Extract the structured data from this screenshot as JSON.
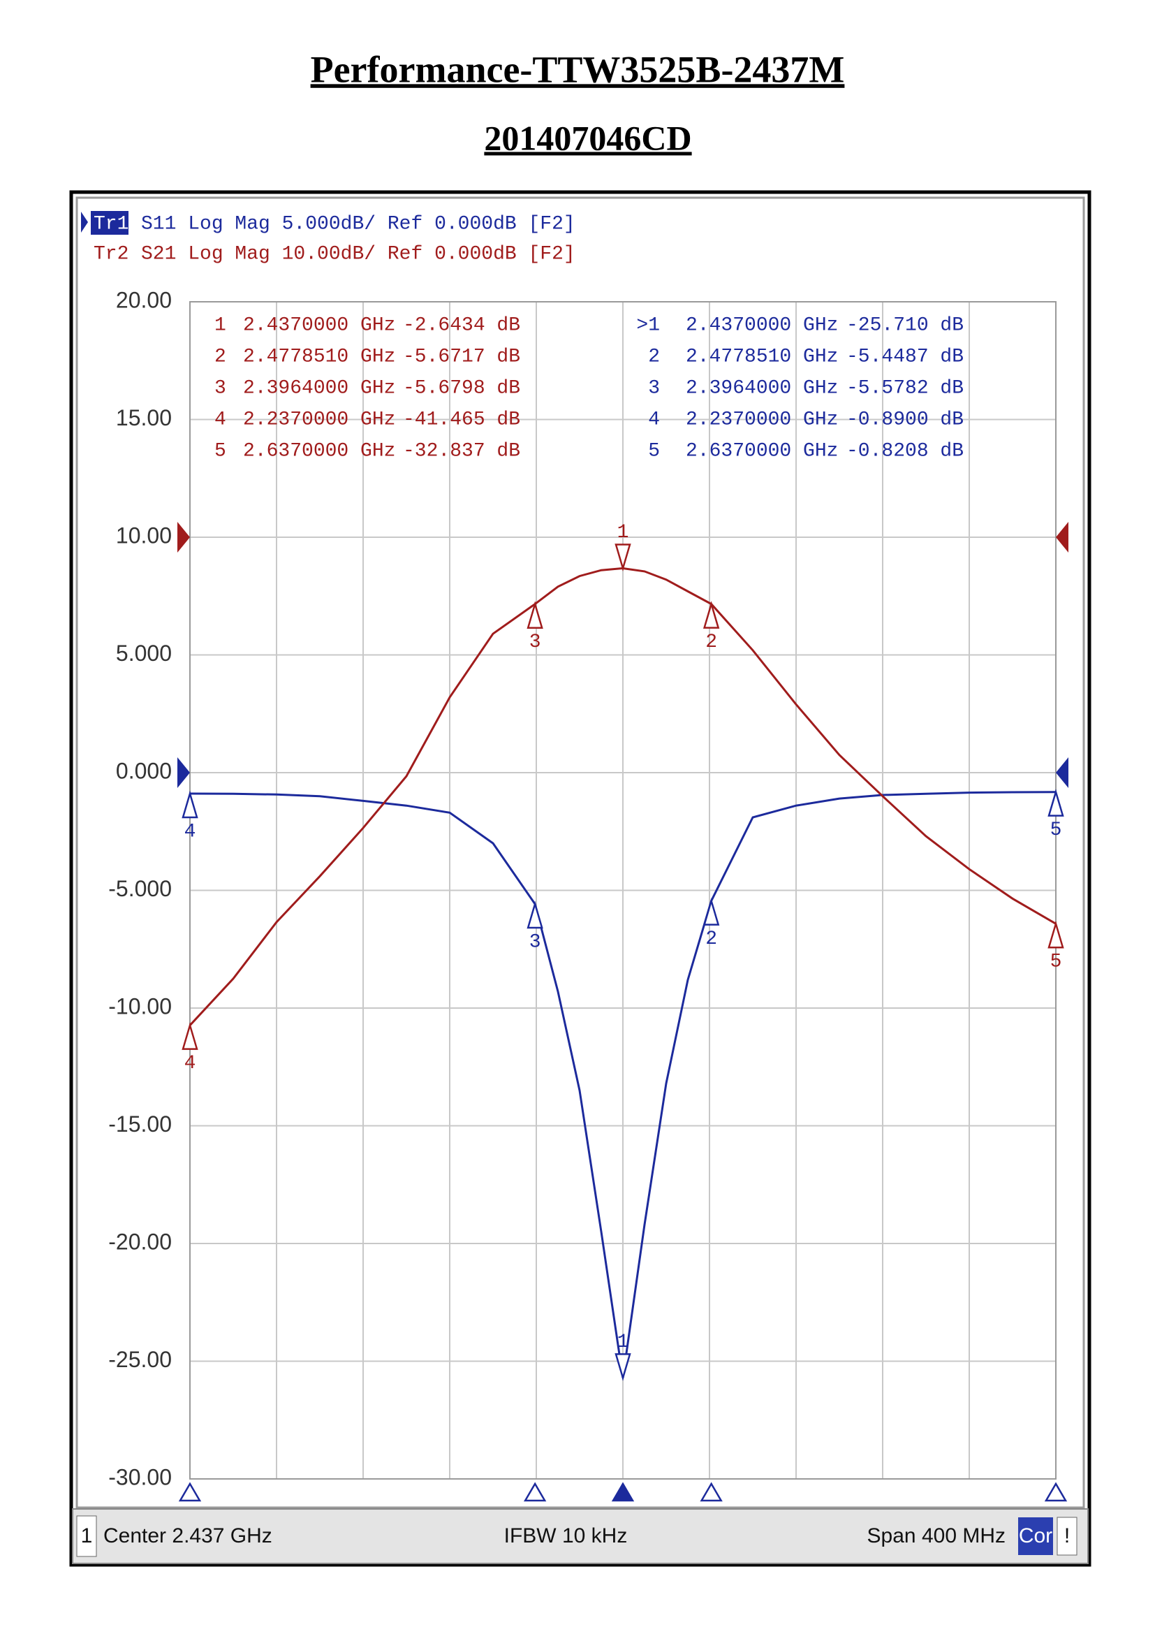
{
  "chart_data": {
    "type": "line",
    "title": "Performance-TTW3525B-2437M",
    "subtitle": "201407046CD",
    "x": [
      2.237,
      2.257,
      2.277,
      2.297,
      2.317,
      2.337,
      2.357,
      2.377,
      2.3964,
      2.407,
      2.417,
      2.427,
      2.437,
      2.447,
      2.457,
      2.467,
      2.47785,
      2.497,
      2.517,
      2.537,
      2.557,
      2.577,
      2.597,
      2.617,
      2.637
    ],
    "xlim": [
      2.237,
      2.637
    ],
    "ylim": [
      -30,
      20
    ],
    "y2lim": [
      -80,
      20
    ],
    "yticks": [
      {
        "value": 20,
        "label": "20.00"
      },
      {
        "value": 15,
        "label": "15.00"
      },
      {
        "value": 10,
        "label": "10.00"
      },
      {
        "value": 5,
        "label": "5.000"
      },
      {
        "value": 0,
        "label": "0.000"
      },
      {
        "value": -5,
        "label": "-5.000"
      },
      {
        "value": -10,
        "label": "-10.00"
      },
      {
        "value": -15,
        "label": "-15.00"
      },
      {
        "value": -20,
        "label": "-20.00"
      },
      {
        "value": -25,
        "label": "-25.00"
      },
      {
        "value": -30,
        "label": "-30.00"
      }
    ],
    "grid": true,
    "series": [
      {
        "trace": "Tr1",
        "name": "S11 Log Mag 5.000dB/ Ref 0.000dB [F2]",
        "color": "#1c2a9c",
        "values": [
          -0.89,
          -0.9,
          -0.93,
          -1.0,
          -1.2,
          -1.4,
          -1.7,
          -3.0,
          -5.5782,
          -9.3,
          -13.5,
          -19.5,
          -25.71,
          -19.2,
          -13.2,
          -8.8,
          -5.4487,
          -1.9,
          -1.4,
          -1.1,
          -0.95,
          -0.9,
          -0.85,
          -0.83,
          -0.8208
        ],
        "markers": {
          "labels": [
            "1",
            "2",
            "3",
            "4",
            "5"
          ],
          "table_labels": [
            ">1",
            "2",
            "3",
            "4",
            "5"
          ],
          "x": [
            2.437,
            2.477851,
            2.3964,
            2.237,
            2.637
          ],
          "x_labels": [
            "2.4370000 GHz",
            "2.4778510 GHz",
            "2.3964000 GHz",
            "2.2370000 GHz",
            "2.6370000 GHz"
          ],
          "values": [
            -25.71,
            -5.4487,
            -5.5782,
            -0.89,
            -0.8208
          ],
          "value_labels": [
            "-25.710 dB",
            "-5.4487 dB",
            "-5.5782 dB",
            "-0.8900 dB",
            "-0.8208 dB"
          ]
        }
      },
      {
        "trace": "Tr2",
        "name": "S21 Log Mag 10.00dB/ Ref 0.000dB [F2]",
        "color": "#a01c1c",
        "axis": "y2",
        "values": [
          -41.465,
          -37.5,
          -32.7,
          -28.8,
          -24.7,
          -20.3,
          -13.6,
          -8.2,
          -5.6798,
          -4.2,
          -3.3,
          -2.8,
          -2.6434,
          -2.9,
          -3.6,
          -4.6,
          -5.6717,
          -9.6,
          -14.2,
          -18.5,
          -22,
          -25.4,
          -28.2,
          -30.7,
          -32.837
        ],
        "markers": {
          "labels": [
            "1",
            "2",
            "3",
            "4",
            "5"
          ],
          "table_labels": [
            "1",
            "2",
            "3",
            "4",
            "5"
          ],
          "x": [
            2.437,
            2.477851,
            2.3964,
            2.237,
            2.637
          ],
          "x_labels": [
            "2.4370000 GHz",
            "2.4778510 GHz",
            "2.3964000 GHz",
            "2.2370000 GHz",
            "2.6370000 GHz"
          ],
          "values": [
            -2.6434,
            -5.6717,
            -5.6798,
            -41.465,
            -32.837
          ],
          "value_labels": [
            "-2.6434 dB",
            "-5.6717 dB",
            "-5.6798 dB",
            "-41.465 dB",
            "-32.837 dB"
          ]
        }
      }
    ],
    "footer": {
      "channel": "1",
      "center": "Center 2.437 GHz",
      "ifbw": "IFBW 10 kHz",
      "span": "Span 400 MHz",
      "correction": "Cor",
      "status": "!"
    }
  }
}
